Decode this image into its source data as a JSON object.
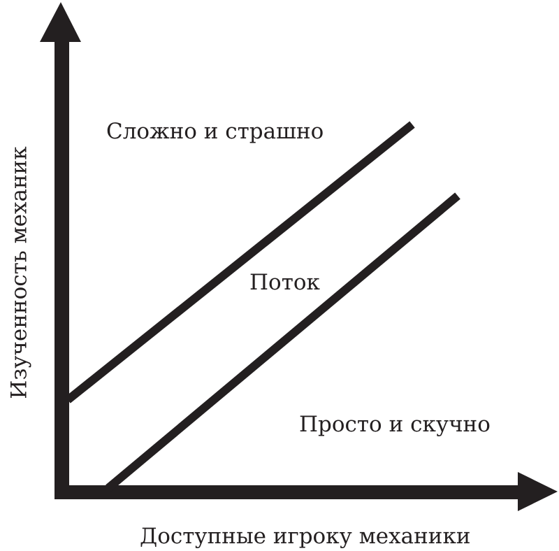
{
  "diagram": {
    "x_axis_label": "Доступные игроку механики",
    "y_axis_label": "Изученность механик",
    "regions": {
      "upper": "Сложно и страшно",
      "middle": "Поток",
      "lower": "Просто и скучно"
    },
    "colors": {
      "ink": "#231f20",
      "background": "#ffffff"
    }
  }
}
